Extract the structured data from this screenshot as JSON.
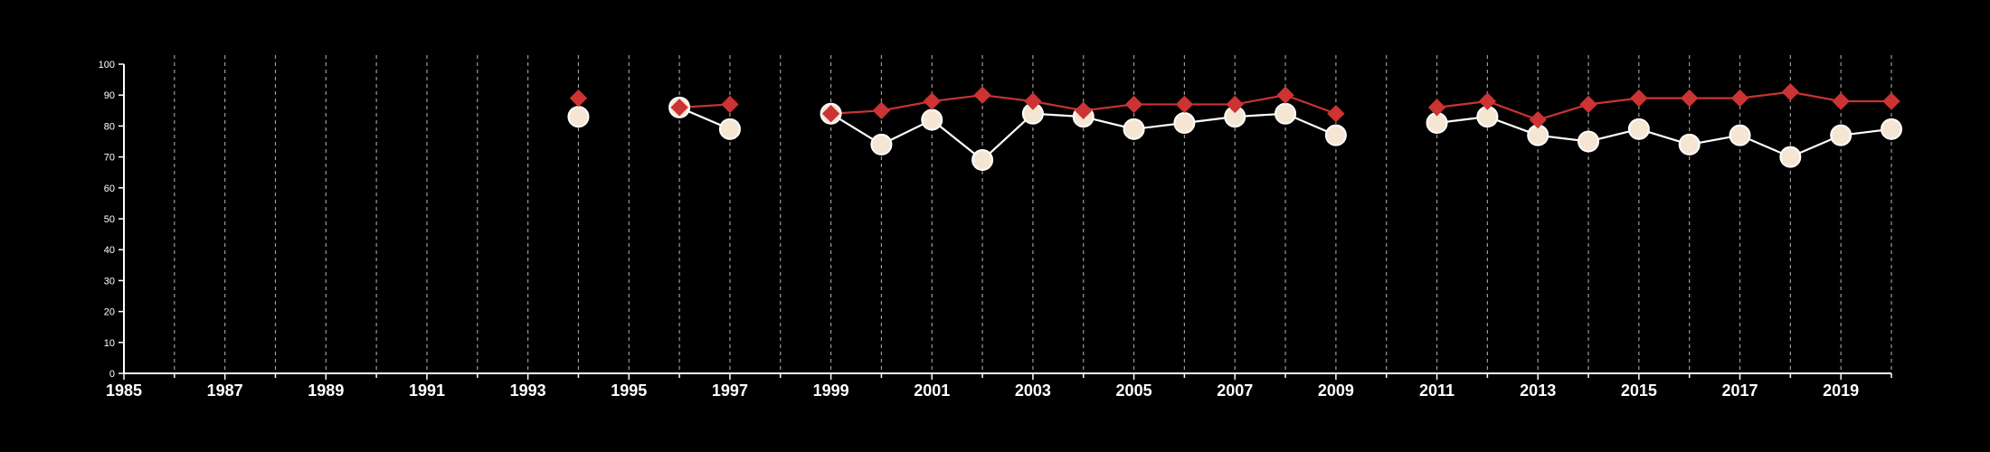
{
  "chart_data": {
    "type": "line",
    "title": "",
    "xlabel": "",
    "ylabel": "",
    "xlim": [
      1985,
      2020
    ],
    "ylim": [
      0,
      100
    ],
    "y_ticks": [
      0,
      10,
      20,
      30,
      40,
      50,
      60,
      70,
      80,
      90,
      100
    ],
    "y_tick_labels": [
      "0",
      "10",
      "20",
      "30",
      "40",
      "50",
      "60",
      "70",
      "80",
      "90",
      "100"
    ],
    "x_ticks": [
      1985,
      1987,
      1989,
      1991,
      1993,
      1995,
      1997,
      1999,
      2001,
      2003,
      2005,
      2007,
      2009,
      2011,
      2013,
      2015,
      2017,
      2019
    ],
    "x_tick_labels": [
      "1985",
      "1987",
      "1989",
      "1991",
      "1993",
      "1995",
      "1997",
      "1999",
      "2001",
      "2003",
      "2005",
      "2007",
      "2009",
      "2011",
      "2013",
      "2015",
      "2017",
      "2019"
    ],
    "grid": "vertical dashed lines at every year",
    "x": [
      1994,
      1996,
      1997,
      1999,
      2000,
      2001,
      2002,
      2003,
      2004,
      2005,
      2006,
      2007,
      2008,
      2009,
      2011,
      2012,
      2013,
      2014,
      2015,
      2016,
      2017,
      2018,
      2019,
      2020
    ],
    "series": [
      {
        "marker": "circle",
        "color": "#f5e6d3",
        "line_color": "#ffffff",
        "values": [
          83,
          86,
          79,
          84,
          74,
          82,
          69,
          84,
          83,
          79,
          81,
          83,
          84,
          77,
          81,
          83,
          77,
          75,
          79,
          74,
          77,
          70,
          77,
          79
        ]
      },
      {
        "marker": "diamond",
        "color": "#cc3333",
        "line_color": "#cc3333",
        "values": [
          89,
          86,
          87,
          84,
          85,
          88,
          90,
          88,
          85,
          87,
          87,
          87,
          90,
          84,
          86,
          88,
          82,
          87,
          89,
          89,
          89,
          91,
          88,
          88
        ]
      }
    ]
  }
}
